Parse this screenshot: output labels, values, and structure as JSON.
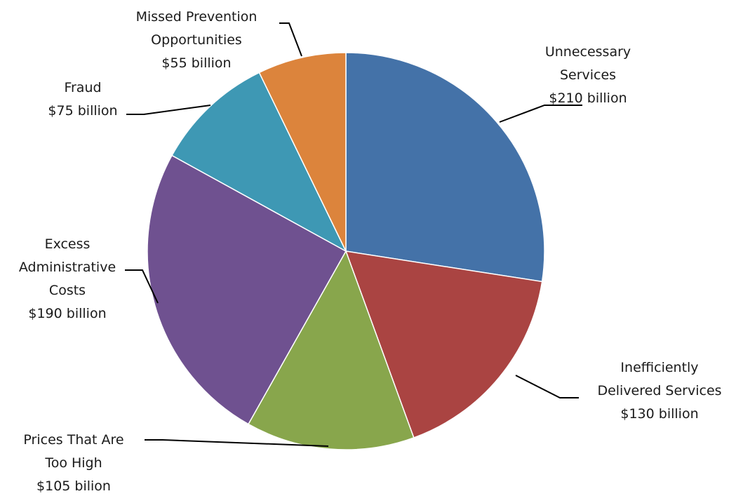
{
  "chart_data": {
    "type": "pie",
    "title": "",
    "slices": [
      {
        "name": "Unnecessary Services",
        "value": 210,
        "value_label": "$210 billion",
        "color": "#4472a8",
        "label_lines": [
          "Unnecessary",
          "Services",
          "$210 billion"
        ]
      },
      {
        "name": "Inefficiently Delivered Services",
        "value": 130,
        "value_label": "$130 billion",
        "color": "#aa4442",
        "label_lines": [
          "Inefficiently",
          "Delivered Services",
          "$130 billion"
        ]
      },
      {
        "name": "Prices That Are Too High",
        "value": 105,
        "value_label": "$105 bilion",
        "color": "#88a64c",
        "label_lines": [
          "Prices That Are",
          "Too High",
          "$105 bilion"
        ]
      },
      {
        "name": "Excess Administrative Costs",
        "value": 190,
        "value_label": "$190 billion",
        "color": "#6f5190",
        "label_lines": [
          "Excess",
          "Administrative",
          "Costs",
          "$190 billion"
        ]
      },
      {
        "name": "Fraud",
        "value": 75,
        "value_label": "$75 billion",
        "color": "#3e98b4",
        "label_lines": [
          "Fraud",
          "$75 billion"
        ]
      },
      {
        "name": "Missed Prevention Opportunities",
        "value": 55,
        "value_label": "$55 billion",
        "color": "#dc843c",
        "label_lines": [
          "Missed Prevention",
          "Opportunities",
          "$55 billion"
        ]
      }
    ],
    "start_angle": "12 o'clock",
    "direction": "clockwise",
    "legend": "none",
    "labels": "outside with leader lines"
  }
}
